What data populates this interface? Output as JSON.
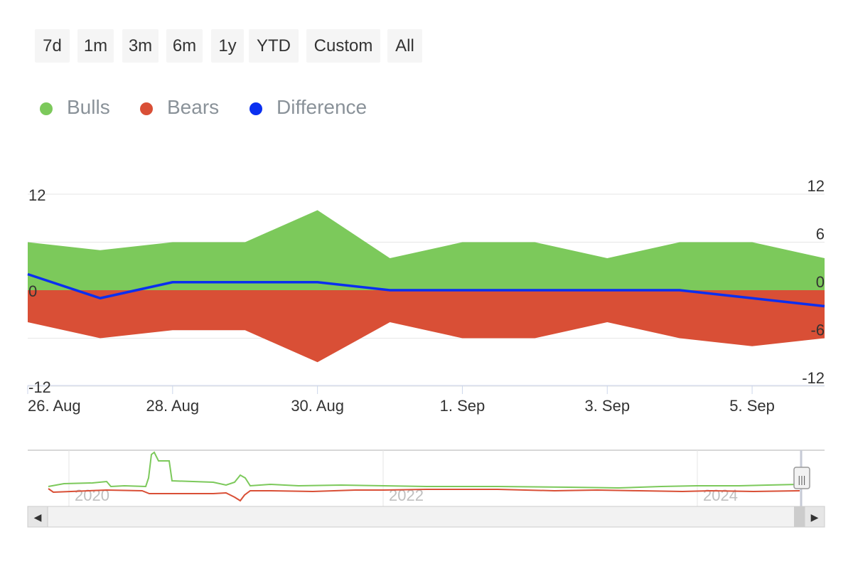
{
  "range_selector": {
    "buttons": [
      {
        "label": "7d"
      },
      {
        "label": "1m"
      },
      {
        "label": "3m"
      },
      {
        "label": "6m"
      },
      {
        "label": "1y"
      },
      {
        "label": "YTD"
      },
      {
        "label": "Custom"
      },
      {
        "label": "All"
      }
    ]
  },
  "legend": {
    "items": [
      {
        "label": "Bulls",
        "color": "#7cc95b"
      },
      {
        "label": "Bears",
        "color": "#d94f36"
      },
      {
        "label": "Difference",
        "color": "#0a2ff0"
      }
    ]
  },
  "chart_data": {
    "type": "area",
    "x": [
      "26. Aug",
      "27. Aug",
      "28. Aug",
      "29. Aug",
      "30. Aug",
      "31. Aug",
      "1. Sep",
      "2. Sep",
      "3. Sep",
      "4. Sep",
      "5. Sep",
      "6. Sep"
    ],
    "x_tick_labels": [
      "26. Aug",
      "28. Aug",
      "30. Aug",
      "1. Sep",
      "3. Sep",
      "5. Sep"
    ],
    "y_left": {
      "range": [
        -12,
        12
      ],
      "tick_labels": [
        "12",
        "0",
        "-12"
      ]
    },
    "y_right": {
      "range": [
        -12,
        12
      ],
      "tick_labels": [
        "12",
        "6",
        "0",
        "-6",
        "-12"
      ]
    },
    "grid": true,
    "legend_placement": "top-left",
    "series": [
      {
        "name": "Bulls",
        "type": "area",
        "color": "#7cc95b",
        "values": [
          6,
          5,
          6,
          6,
          10,
          4,
          6,
          6,
          4,
          6,
          6,
          4
        ]
      },
      {
        "name": "Bears",
        "type": "area",
        "color": "#d94f36",
        "values": [
          -4,
          -6,
          -5,
          -5,
          -9,
          -4,
          -6,
          -6,
          -4,
          -6,
          -7,
          -6
        ]
      },
      {
        "name": "Difference",
        "type": "line",
        "color": "#0a2ff0",
        "values": [
          2,
          -1,
          1,
          1,
          1,
          0,
          0,
          0,
          0,
          0,
          -1,
          -2
        ]
      }
    ],
    "navigator": {
      "tick_labels": [
        "2020",
        "2022",
        "2024"
      ],
      "series": [
        {
          "name": "Bulls",
          "color": "#7cc95b"
        },
        {
          "name": "Bears",
          "color": "#d94f36"
        }
      ],
      "scrollbar": {
        "left_arrow": "◀",
        "right_arrow": "▶",
        "handle_grip": "|||"
      }
    }
  }
}
